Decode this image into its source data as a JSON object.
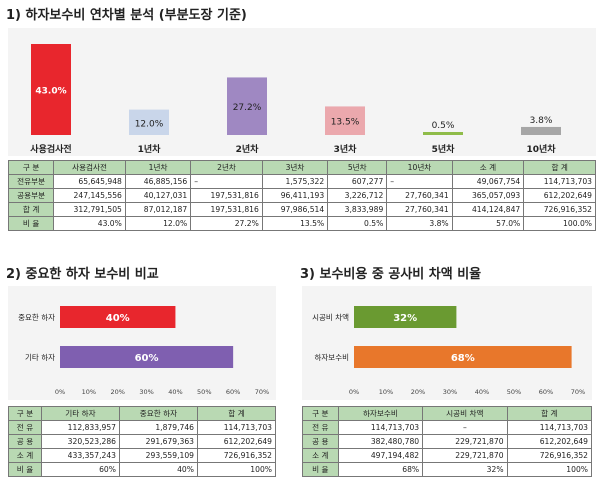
{
  "section1": {
    "title": "1) 하자보수비 연차별 분석 (부분도장 기준)",
    "chart_data": {
      "type": "bar",
      "categories": [
        "사용검사전",
        "1년차",
        "2년차",
        "3년차",
        "5년차",
        "10년차"
      ],
      "values": [
        43.0,
        12.0,
        27.2,
        13.5,
        0.5,
        3.8
      ],
      "value_labels": [
        "43.0%",
        "12.0%",
        "27.2%",
        "13.5%",
        "0.5%",
        "3.8%"
      ],
      "colors": [
        "#e8262d",
        "#c9d6ea",
        "#9f88c2",
        "#eba8ad",
        "#8fbc49",
        "#a6a6a6"
      ],
      "ylim": [
        0,
        43.0
      ]
    },
    "table": {
      "headers": [
        "구   분",
        "사용검사전",
        "1년차",
        "2년차",
        "3년차",
        "5년차",
        "10년차",
        "소   계",
        "합   계"
      ],
      "rows": [
        [
          "전유부분",
          "65,645,948",
          "46,885,156",
          "–",
          "1,575,322",
          "607,277",
          "–",
          "49,067,754",
          "114,713,703"
        ],
        [
          "공용부분",
          "247,145,556",
          "40,127,031",
          "197,531,816",
          "96,411,193",
          "3,226,712",
          "27,760,341",
          "365,057,093",
          "612,202,649"
        ],
        [
          "합   계",
          "312,791,505",
          "87,012,187",
          "197,531,816",
          "97,986,514",
          "3,833,989",
          "27,760,341",
          "414,124,847",
          "726,916,352"
        ],
        [
          "비   율",
          "43.0%",
          "12.0%",
          "27.2%",
          "13.5%",
          "0.5%",
          "3.8%",
          "57.0%",
          "100.0%"
        ]
      ]
    }
  },
  "section2": {
    "title": "2) 중요한 하자 보수비 비교",
    "chart_data": {
      "type": "bar",
      "orientation": "horizontal",
      "categories": [
        "중요한 하자",
        "기타   하자"
      ],
      "values": [
        40,
        60
      ],
      "value_labels": [
        "40%",
        "60%"
      ],
      "colors": [
        "#e8262d",
        "#7f5fb0"
      ],
      "xlim": [
        0,
        70
      ],
      "x_ticks": [
        "0%",
        "10%",
        "20%",
        "30%",
        "40%",
        "50%",
        "60%",
        "70%"
      ]
    },
    "table": {
      "headers": [
        "구   분",
        "기타   하자",
        "중요한 하자",
        "합   계"
      ],
      "rows": [
        [
          "전   유",
          "112,833,957",
          "1,879,746",
          "114,713,703"
        ],
        [
          "공   용",
          "320,523,286",
          "291,679,363",
          "612,202,649"
        ],
        [
          "소   계",
          "433,357,243",
          "293,559,109",
          "726,916,352"
        ],
        [
          "비   율",
          "60%",
          "40%",
          "100%"
        ]
      ]
    }
  },
  "section3": {
    "title": "3) 보수비용 중 공사비 차액 비율",
    "chart_data": {
      "type": "bar",
      "orientation": "horizontal",
      "categories": [
        "시공비 차액",
        "하자보수비"
      ],
      "values": [
        32,
        68
      ],
      "value_labels": [
        "32%",
        "68%"
      ],
      "colors": [
        "#6a9a31",
        "#e8772b"
      ],
      "xlim": [
        0,
        70
      ],
      "x_ticks": [
        "0%",
        "10%",
        "20%",
        "30%",
        "40%",
        "50%",
        "60%",
        "70%"
      ]
    },
    "table": {
      "headers": [
        "구   분",
        "하자보수비",
        "시공비 차액",
        "합   계"
      ],
      "rows": [
        [
          "전   유",
          "114,713,703",
          "–",
          "114,713,703"
        ],
        [
          "공   용",
          "382,480,780",
          "229,721,870",
          "612,202,649"
        ],
        [
          "소   계",
          "497,194,482",
          "229,721,870",
          "726,916,352"
        ],
        [
          "비   율",
          "68%",
          "32%",
          "100%"
        ]
      ]
    }
  }
}
